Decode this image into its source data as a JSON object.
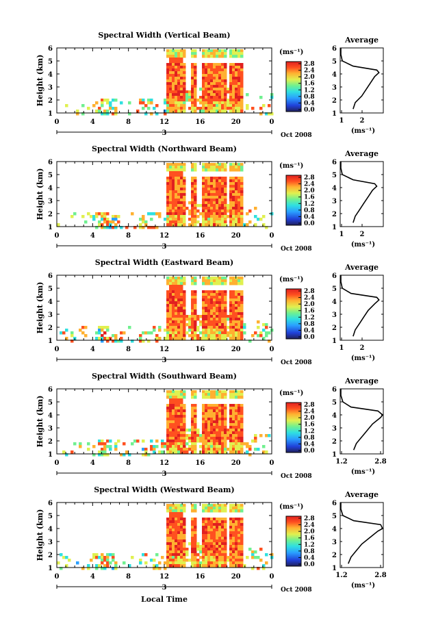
{
  "shared": {
    "x_ticks": [
      "0",
      "4",
      "8",
      "12",
      "16",
      "20",
      "0"
    ],
    "y_ticks": [
      "1",
      "2",
      "3",
      "4",
      "5",
      "6"
    ],
    "date_label": "3",
    "month_label": "Oct 2008",
    "y_label": "Height (km)",
    "unit_label": "(ms⁻¹)",
    "avg_title": "Average",
    "avg_xlabel": "(ms⁻¹)",
    "colorbar_ticks": [
      "0.0",
      "0.4",
      "0.8",
      "1.2",
      "1.6",
      "2.0",
      "2.4",
      "2.8"
    ],
    "x_axis_title": "Local Time"
  },
  "panels": [
    {
      "title": "Spectral Width (Vertical Beam)",
      "avg_ticks": [
        "1",
        "2"
      ]
    },
    {
      "title": "Spectral Width (Northward Beam)",
      "avg_ticks": [
        "1",
        "2"
      ]
    },
    {
      "title": "Spectral Width (Eastward Beam)",
      "avg_ticks": [
        "1",
        "2"
      ]
    },
    {
      "title": "Spectral Width (Southward Beam)",
      "avg_ticks": [
        "1.2",
        "2.8"
      ]
    },
    {
      "title": "Spectral Width (Westward Beam)",
      "avg_ticks": [
        "1.2",
        "2.8"
      ]
    }
  ],
  "chart_data": {
    "type": "heatmap",
    "x_range_hours": [
      0,
      24
    ],
    "y_range_km": [
      1,
      6
    ],
    "color_range": [
      0,
      2.8
    ],
    "colormap": [
      "#20205a",
      "#2040d8",
      "#2aa0ff",
      "#30e0e0",
      "#70f090",
      "#e0f050",
      "#ffb030",
      "#ff5020",
      "#e02020"
    ],
    "profiles": [
      {
        "name": "Vertical",
        "height": [
          1.3,
          1.8,
          2.3,
          2.8,
          3.3,
          3.8,
          4.1,
          4.3,
          4.6,
          5.0,
          5.5,
          6.0
        ],
        "value": [
          1.6,
          1.7,
          2.0,
          2.2,
          2.4,
          2.6,
          2.8,
          2.7,
          1.6,
          1.1,
          1.0,
          1.0
        ]
      },
      {
        "name": "Northward",
        "height": [
          1.3,
          1.8,
          2.3,
          2.8,
          3.3,
          3.8,
          4.1,
          4.3,
          4.6,
          5.0,
          5.5,
          6.0
        ],
        "value": [
          1.6,
          1.7,
          1.9,
          2.1,
          2.3,
          2.5,
          2.7,
          2.6,
          1.6,
          1.1,
          1.0,
          1.0
        ]
      },
      {
        "name": "Eastward",
        "height": [
          1.3,
          1.8,
          2.3,
          2.8,
          3.3,
          3.8,
          4.1,
          4.3,
          4.6,
          5.0,
          5.5,
          6.0
        ],
        "value": [
          1.6,
          1.7,
          1.9,
          2.1,
          2.3,
          2.6,
          2.8,
          2.7,
          1.5,
          1.1,
          1.0,
          1.0
        ]
      },
      {
        "name": "Southward",
        "height": [
          1.3,
          1.8,
          2.3,
          2.8,
          3.3,
          3.8,
          4.0,
          4.3,
          4.6,
          5.0,
          5.5,
          6.0
        ],
        "value": [
          1.7,
          1.8,
          2.0,
          2.2,
          2.4,
          2.7,
          2.8,
          2.6,
          1.6,
          1.3,
          1.2,
          1.2
        ]
      },
      {
        "name": "Westward",
        "height": [
          1.3,
          1.8,
          2.3,
          2.8,
          3.3,
          3.8,
          4.0,
          4.3,
          4.6,
          5.0,
          5.5,
          6.0
        ],
        "value": [
          1.5,
          1.6,
          1.8,
          2.0,
          2.3,
          2.6,
          2.8,
          2.7,
          1.7,
          1.3,
          1.2,
          1.2
        ]
      }
    ]
  }
}
